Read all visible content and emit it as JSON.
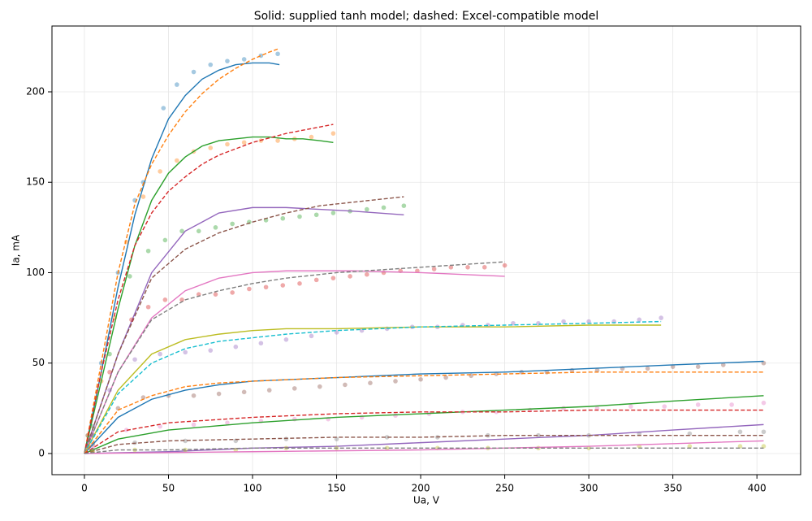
{
  "chart_data": {
    "type": "line",
    "title": "Solid: supplied tanh model; dashed: Excel-compatible model",
    "x_label": "Ua, V",
    "y_label": "Ia, mA",
    "xlim": [
      -19.3,
      426
    ],
    "ylim": [
      -11.7,
      236.4
    ],
    "xticks": [
      0,
      50,
      100,
      150,
      200,
      250,
      300,
      350,
      400
    ],
    "yticks": [
      0,
      50,
      100,
      150,
      200
    ],
    "grid": true,
    "series": [
      {
        "style": "dots",
        "color": "#1f77b4",
        "x": [
          2,
          10,
          20,
          30,
          35,
          47,
          55,
          65,
          75,
          85,
          95,
          105,
          115
        ],
        "values": [
          10,
          50,
          100,
          140,
          150,
          191,
          204,
          211,
          215,
          217,
          218,
          220,
          221
        ]
      },
      {
        "style": "solid",
        "color": "#1f77b4",
        "x": [
          0,
          10,
          20,
          30,
          40,
          50,
          60,
          70,
          80,
          90,
          100,
          110,
          116
        ],
        "values": [
          0,
          45,
          92,
          132,
          163,
          185,
          198,
          207,
          212,
          215,
          216,
          216,
          215
        ]
      },
      {
        "style": "dashed",
        "color": "#ff7f0e",
        "x": [
          0,
          10,
          20,
          30,
          40,
          50,
          60,
          70,
          80,
          90,
          100,
          110,
          116
        ],
        "values": [
          0,
          50,
          100,
          138,
          160,
          176,
          189,
          199,
          207,
          213,
          218,
          222,
          224
        ]
      },
      {
        "style": "dots",
        "color": "#ff7f0e",
        "x": [
          2,
          10,
          18,
          25,
          35,
          45,
          55,
          65,
          75,
          85,
          95,
          105,
          115,
          125,
          135,
          148
        ],
        "values": [
          10,
          40,
          75,
          117,
          142,
          156,
          162,
          167,
          169,
          171,
          172,
          173,
          173,
          174,
          175,
          177
        ]
      },
      {
        "style": "solid",
        "color": "#2ca02c",
        "x": [
          0,
          10,
          20,
          30,
          40,
          50,
          60,
          70,
          80,
          90,
          100,
          110,
          120,
          130,
          140,
          148
        ],
        "values": [
          0,
          40,
          80,
          115,
          140,
          155,
          164,
          170,
          173,
          174,
          175,
          175,
          174,
          174,
          173,
          172
        ]
      },
      {
        "style": "dashed",
        "color": "#d62728",
        "x": [
          0,
          10,
          20,
          30,
          40,
          50,
          60,
          70,
          80,
          100,
          120,
          148
        ],
        "values": [
          0,
          45,
          85,
          115,
          133,
          145,
          153,
          160,
          165,
          172,
          177,
          182
        ]
      },
      {
        "style": "dots",
        "color": "#2ca02c",
        "x": [
          5,
          15,
          27,
          38,
          48,
          58,
          68,
          78,
          88,
          98,
          108,
          118,
          128,
          138,
          148,
          158,
          168,
          178,
          190
        ],
        "values": [
          15,
          55,
          98,
          112,
          118,
          123,
          123,
          125,
          127,
          128,
          129,
          130,
          131,
          132,
          133,
          134,
          135,
          136,
          137
        ]
      },
      {
        "style": "solid",
        "color": "#9467bd",
        "x": [
          0,
          20,
          40,
          60,
          80,
          100,
          120,
          140,
          160,
          190
        ],
        "values": [
          0,
          55,
          100,
          123,
          133,
          136,
          136,
          135,
          134,
          132
        ]
      },
      {
        "style": "dashed",
        "color": "#8c564b",
        "x": [
          0,
          20,
          40,
          60,
          80,
          100,
          120,
          140,
          160,
          190
        ],
        "values": [
          0,
          55,
          97,
          113,
          122,
          128,
          133,
          137,
          139,
          142
        ]
      },
      {
        "style": "dots",
        "color": "#d62728",
        "x": [
          5,
          15,
          28,
          38,
          48,
          58,
          68,
          78,
          88,
          98,
          108,
          118,
          128,
          138,
          148,
          158,
          168,
          178,
          188,
          198,
          208,
          218,
          228,
          238,
          250
        ],
        "values": [
          10,
          45,
          74,
          81,
          85,
          85,
          88,
          88,
          89,
          91,
          92,
          93,
          94,
          96,
          97,
          98,
          99,
          100,
          101,
          101,
          102,
          103,
          103,
          103,
          104
        ]
      },
      {
        "style": "solid",
        "color": "#e377c2",
        "x": [
          0,
          20,
          40,
          60,
          80,
          100,
          120,
          140,
          160,
          200,
          250
        ],
        "values": [
          0,
          45,
          75,
          90,
          97,
          100,
          101,
          101,
          101,
          100,
          98
        ]
      },
      {
        "style": "dashed",
        "color": "#7f7f7f",
        "x": [
          0,
          20,
          40,
          60,
          80,
          100,
          120,
          150,
          200,
          250
        ],
        "values": [
          0,
          45,
          74,
          85,
          90,
          94,
          97,
          100,
          103,
          106
        ]
      },
      {
        "style": "dots",
        "color": "#9467bd",
        "x": [
          5,
          15,
          30,
          45,
          60,
          75,
          90,
          105,
          120,
          135,
          150,
          165,
          180,
          195,
          210,
          225,
          240,
          255,
          270,
          285,
          300,
          315,
          330,
          343
        ],
        "values": [
          10,
          35,
          52,
          55,
          56,
          57,
          59,
          61,
          63,
          65,
          67,
          68,
          69,
          70,
          70,
          71,
          71,
          72,
          72,
          73,
          73,
          73,
          74,
          75
        ]
      },
      {
        "style": "solid",
        "color": "#bcbd22",
        "x": [
          0,
          20,
          40,
          60,
          80,
          100,
          120,
          150,
          200,
          250,
          300,
          343
        ],
        "values": [
          0,
          35,
          55,
          63,
          66,
          68,
          69,
          69,
          70,
          70,
          71,
          71
        ]
      },
      {
        "style": "dashed",
        "color": "#17becf",
        "x": [
          0,
          20,
          40,
          60,
          80,
          100,
          120,
          150,
          200,
          250,
          300,
          343
        ],
        "values": [
          0,
          33,
          50,
          58,
          62,
          64,
          66,
          68,
          70,
          71,
          72,
          73
        ]
      },
      {
        "style": "dots",
        "color": "#8c564b",
        "x": [
          5,
          20,
          35,
          50,
          65,
          80,
          95,
          110,
          125,
          140,
          155,
          170,
          185,
          200,
          215,
          230,
          245,
          260,
          275,
          290,
          305,
          320,
          335,
          350,
          365,
          380,
          404
        ],
        "values": [
          5,
          25,
          31,
          32,
          32,
          33,
          34,
          35,
          36,
          37,
          38,
          39,
          40,
          41,
          42,
          43,
          44,
          45,
          45,
          46,
          46,
          47,
          47,
          48,
          48,
          49,
          50
        ]
      },
      {
        "style": "solid",
        "color": "#1f77b4",
        "x": [
          0,
          20,
          40,
          60,
          80,
          100,
          150,
          200,
          250,
          300,
          350,
          404
        ],
        "values": [
          0,
          20,
          30,
          35,
          38,
          40,
          42,
          44,
          45,
          47,
          49,
          51
        ]
      },
      {
        "style": "dashed",
        "color": "#ff7f0e",
        "x": [
          0,
          20,
          40,
          60,
          80,
          100,
          150,
          200,
          250,
          300,
          350,
          404
        ],
        "values": [
          0,
          24,
          32,
          37,
          39,
          40,
          42,
          43,
          44,
          45,
          45,
          45
        ]
      },
      {
        "style": "dots",
        "color": "#e377c2",
        "x": [
          5,
          25,
          45,
          65,
          85,
          105,
          125,
          145,
          165,
          185,
          205,
          225,
          245,
          265,
          285,
          305,
          325,
          345,
          365,
          385,
          404
        ],
        "values": [
          3,
          13,
          15,
          16,
          17,
          18,
          19,
          19,
          20,
          21,
          22,
          23,
          23,
          24,
          25,
          25,
          26,
          26,
          27,
          27,
          28
        ]
      },
      {
        "style": "solid",
        "color": "#2ca02c",
        "x": [
          0,
          20,
          50,
          100,
          150,
          200,
          250,
          300,
          350,
          404
        ],
        "values": [
          0,
          8,
          13,
          17,
          20,
          22,
          24,
          26,
          29,
          32
        ]
      },
      {
        "style": "dashed",
        "color": "#d62728",
        "x": [
          0,
          20,
          50,
          100,
          150,
          200,
          250,
          300,
          350,
          404
        ],
        "values": [
          0,
          12,
          17,
          20,
          22,
          23,
          23,
          24,
          24,
          24
        ]
      },
      {
        "style": "dots",
        "color": "#7f7f7f",
        "x": [
          5,
          30,
          60,
          90,
          120,
          150,
          180,
          210,
          240,
          270,
          300,
          330,
          360,
          390,
          404
        ],
        "values": [
          2,
          6,
          7,
          7,
          8,
          8,
          9,
          9,
          10,
          10,
          10,
          11,
          11,
          12,
          12
        ]
      },
      {
        "style": "solid",
        "color": "#9467bd",
        "x": [
          0,
          50,
          100,
          150,
          200,
          250,
          300,
          350,
          404
        ],
        "values": [
          0,
          1,
          3,
          4,
          6,
          8,
          10,
          13,
          16
        ]
      },
      {
        "style": "dashed",
        "color": "#8c564b",
        "x": [
          0,
          20,
          50,
          100,
          150,
          200,
          250,
          300,
          350,
          404
        ],
        "values": [
          0,
          5,
          7,
          8,
          9,
          9,
          10,
          10,
          10,
          10
        ]
      },
      {
        "style": "dots",
        "color": "#bcbd22",
        "x": [
          5,
          30,
          60,
          90,
          120,
          150,
          180,
          210,
          240,
          270,
          300,
          330,
          360,
          390,
          404
        ],
        "values": [
          1,
          2,
          2,
          2,
          3,
          3,
          3,
          3,
          3,
          3,
          3,
          4,
          4,
          4,
          4
        ]
      },
      {
        "style": "solid",
        "color": "#e377c2",
        "x": [
          0,
          100,
          200,
          300,
          404
        ],
        "values": [
          0,
          1,
          2,
          4,
          7
        ]
      },
      {
        "style": "dashed",
        "color": "#7f7f7f",
        "x": [
          0,
          20,
          50,
          100,
          200,
          300,
          404
        ],
        "values": [
          0,
          2,
          2,
          3,
          3,
          3,
          3
        ]
      }
    ]
  }
}
